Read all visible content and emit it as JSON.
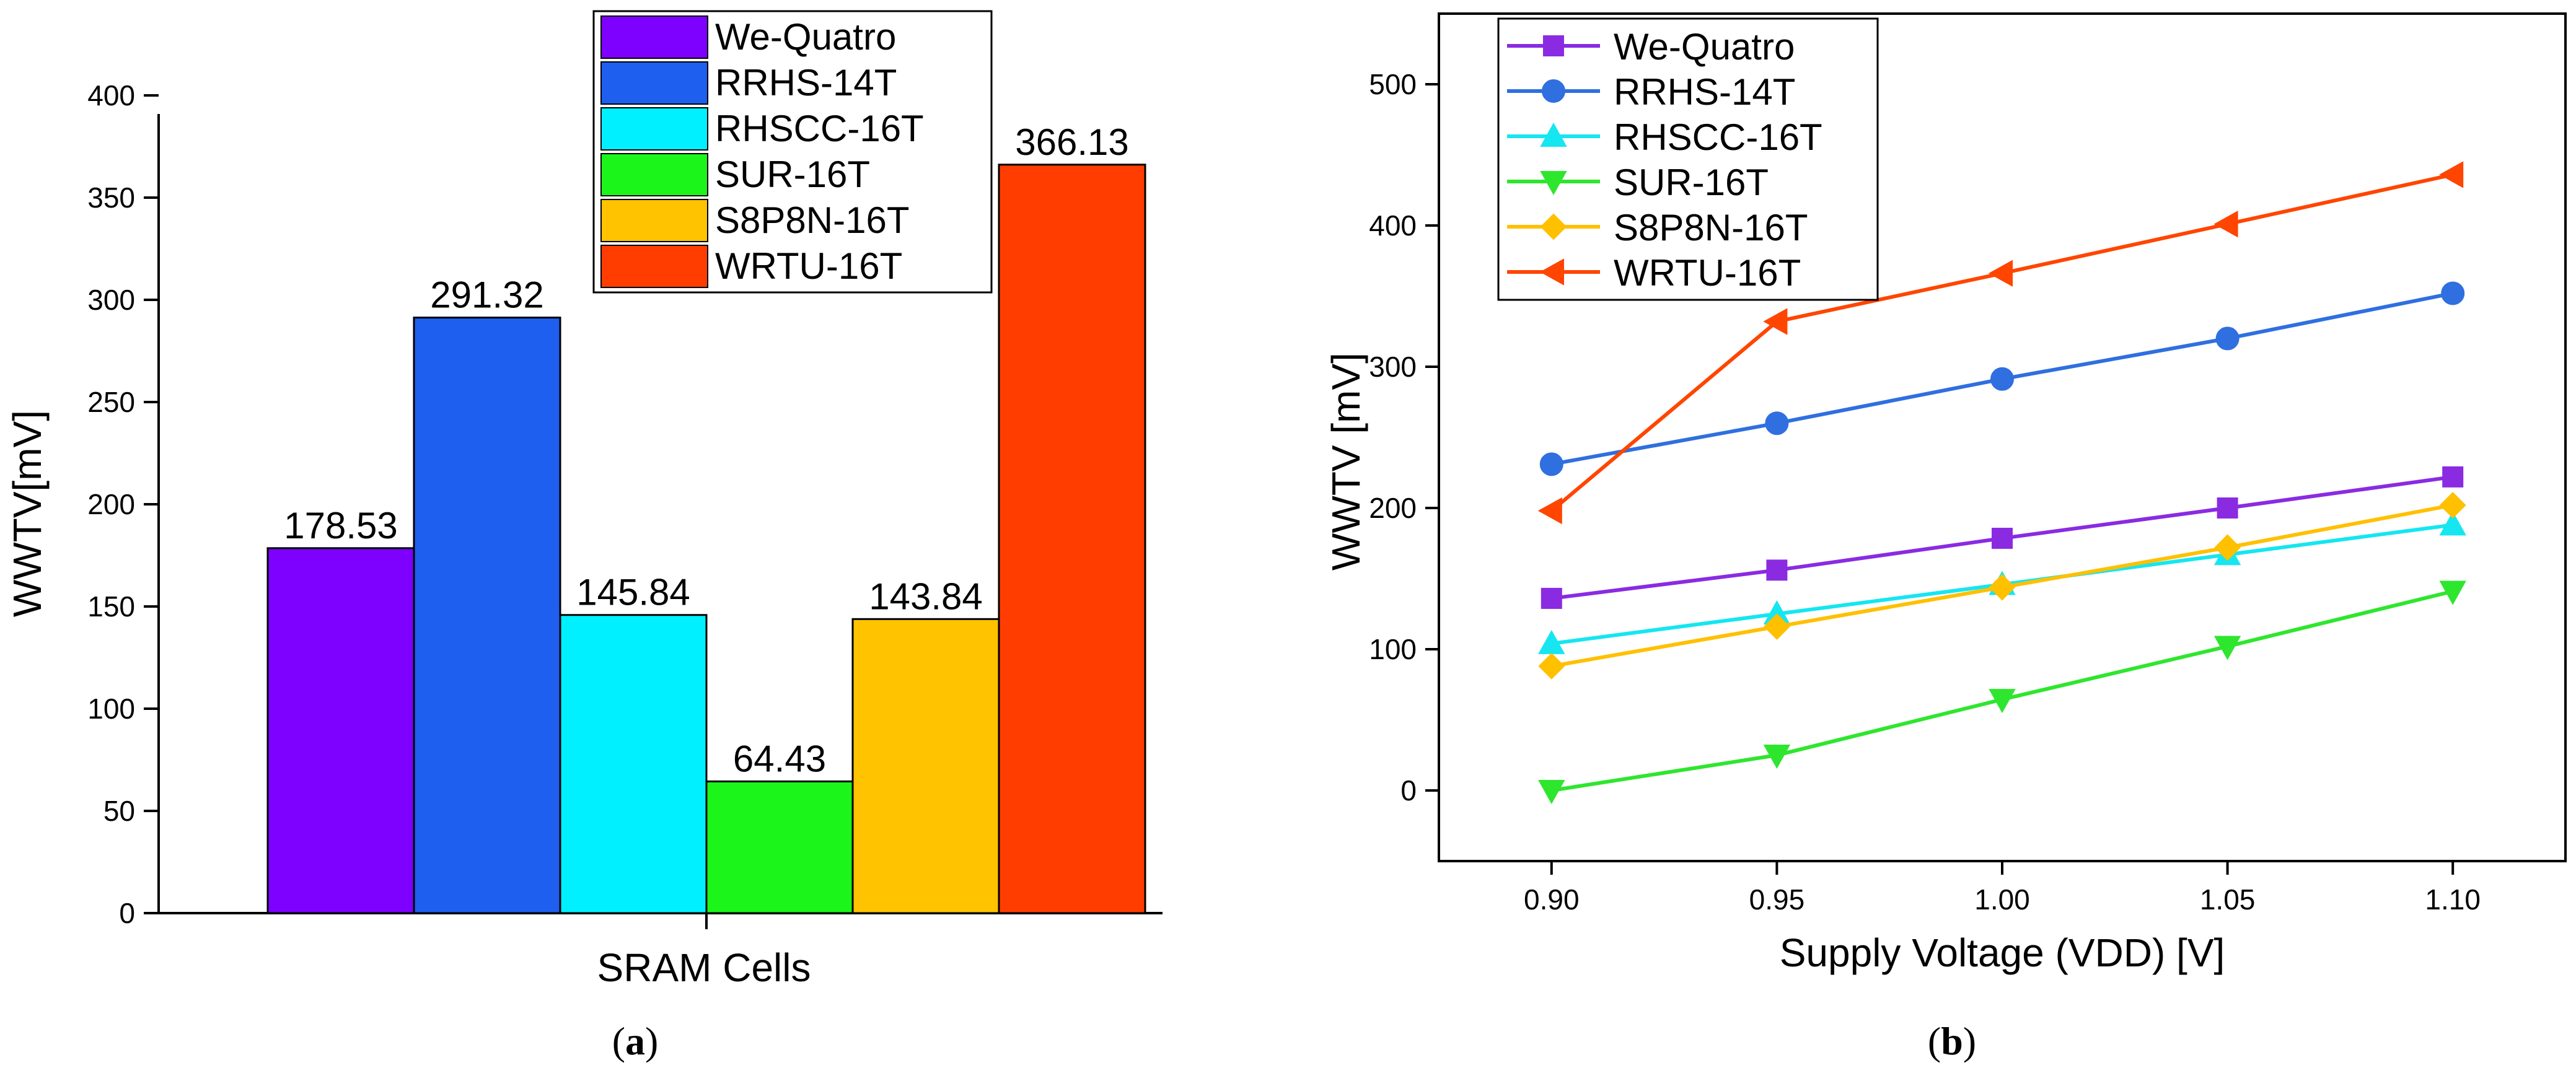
{
  "chart_data": [
    {
      "type": "bar",
      "panel_label": "a",
      "xlabel": "SRAM Cells",
      "ylabel": "WWTV[mV]",
      "ylim": [
        0,
        400
      ],
      "yticks": [
        0,
        50,
        100,
        150,
        200,
        250,
        300,
        350,
        400
      ],
      "legend_position": "top-center",
      "series": [
        {
          "name": "We-Quatro",
          "value": 178.53,
          "label": "178.53",
          "color": "#7e00ff"
        },
        {
          "name": "RRHS-14T",
          "value": 291.32,
          "label": "291.32",
          "color": "#1f5ff0"
        },
        {
          "name": "RHSCC-16T",
          "value": 145.84,
          "label": "145.84",
          "color": "#00f0ff"
        },
        {
          "name": "SUR-16T",
          "value": 64.43,
          "label": "64.43",
          "color": "#1cf51a"
        },
        {
          "name": "S8P8N-16T",
          "value": 143.84,
          "label": "143.84",
          "color": "#ffc300"
        },
        {
          "name": "WRTU-16T",
          "value": 366.13,
          "label": "366.13",
          "color": "#ff3d00"
        }
      ]
    },
    {
      "type": "line",
      "panel_label": "b",
      "xlabel": "Supply Voltage (VDD) [V]",
      "ylabel": "WWTV [mV]",
      "xlim": [
        0.875,
        1.125
      ],
      "ylim": [
        -50,
        550
      ],
      "xticks": [
        "0.90",
        "0.95",
        "1.00",
        "1.05",
        "1.10"
      ],
      "yticks": [
        0,
        100,
        200,
        300,
        400,
        500
      ],
      "x": [
        0.9,
        0.95,
        1.0,
        1.05,
        1.1
      ],
      "legend_position": "top-left",
      "series": [
        {
          "name": "We-Quatro",
          "marker": "square",
          "color": "#8a2be2",
          "values": [
            136,
            156,
            178.53,
            200,
            222
          ]
        },
        {
          "name": "RRHS-14T",
          "marker": "circle",
          "color": "#2f6fe0",
          "values": [
            231,
            260,
            291.32,
            320,
            352
          ]
        },
        {
          "name": "RHSCC-16T",
          "marker": "triangle-up",
          "color": "#15e6f0",
          "values": [
            104,
            125,
            145.84,
            167,
            188
          ]
        },
        {
          "name": "SUR-16T",
          "marker": "triangle-down",
          "color": "#2ee62e",
          "values": [
            0,
            25,
            64.43,
            102,
            141
          ]
        },
        {
          "name": "S8P8N-16T",
          "marker": "diamond",
          "color": "#ffc000",
          "values": [
            88,
            116,
            143.84,
            172,
            202
          ]
        },
        {
          "name": "WRTU-16T",
          "marker": "triangle-left",
          "color": "#ff4500",
          "values": [
            198,
            332,
            366.13,
            401,
            436
          ]
        }
      ]
    }
  ]
}
